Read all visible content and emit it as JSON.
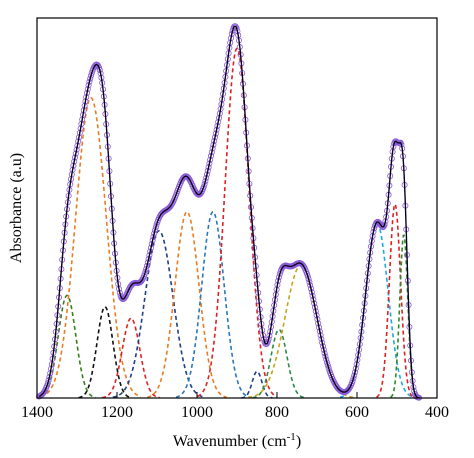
{
  "chart_data": {
    "type": "line",
    "xlabel_main": "Wavenumber (cm",
    "xlabel_sup": "-1",
    "xlabel_end": ")",
    "ylabel": "Absorbance (a.u)",
    "x_reversed": true,
    "xlim": [
      1400,
      400
    ],
    "ylim": [
      0,
      1.0
    ],
    "x_ticks": [
      1400,
      1200,
      1000,
      800,
      600,
      400
    ],
    "y_ticks": [],
    "grid": false,
    "legend": "none",
    "components": [
      {
        "center": 1325,
        "height": 0.27,
        "width": 22,
        "color": "#3a7d1e"
      },
      {
        "center": 1265,
        "height": 0.79,
        "width": 38,
        "color": "#e87d22"
      },
      {
        "center": 1230,
        "height": 0.24,
        "width": 20,
        "color": "#111111"
      },
      {
        "center": 1165,
        "height": 0.21,
        "width": 22,
        "color": "#dd2222"
      },
      {
        "center": 1095,
        "height": 0.44,
        "width": 35,
        "color": "#1d3f8a"
      },
      {
        "center": 1025,
        "height": 0.49,
        "width": 30,
        "color": "#e87d22"
      },
      {
        "center": 960,
        "height": 0.49,
        "width": 28,
        "color": "#2a78b8"
      },
      {
        "center": 900,
        "height": 0.92,
        "width": 30,
        "color": "#dd2222"
      },
      {
        "center": 850,
        "height": 0.07,
        "width": 12,
        "color": "#1d3f8a"
      },
      {
        "center": 795,
        "height": 0.18,
        "width": 20,
        "color": "#2c8a4a"
      },
      {
        "center": 740,
        "height": 0.35,
        "width": 40,
        "color": "#c8a41a"
      },
      {
        "center": 550,
        "height": 0.46,
        "width": 28,
        "color": "#1ea8e0"
      },
      {
        "center": 505,
        "height": 0.51,
        "width": 14,
        "color": "#dd2222"
      },
      {
        "center": 483,
        "height": 0.43,
        "width": 10,
        "color": "#2c8a2c"
      }
    ],
    "envelope_color": "#000000",
    "data_marker_color": "#8a5ad8"
  }
}
